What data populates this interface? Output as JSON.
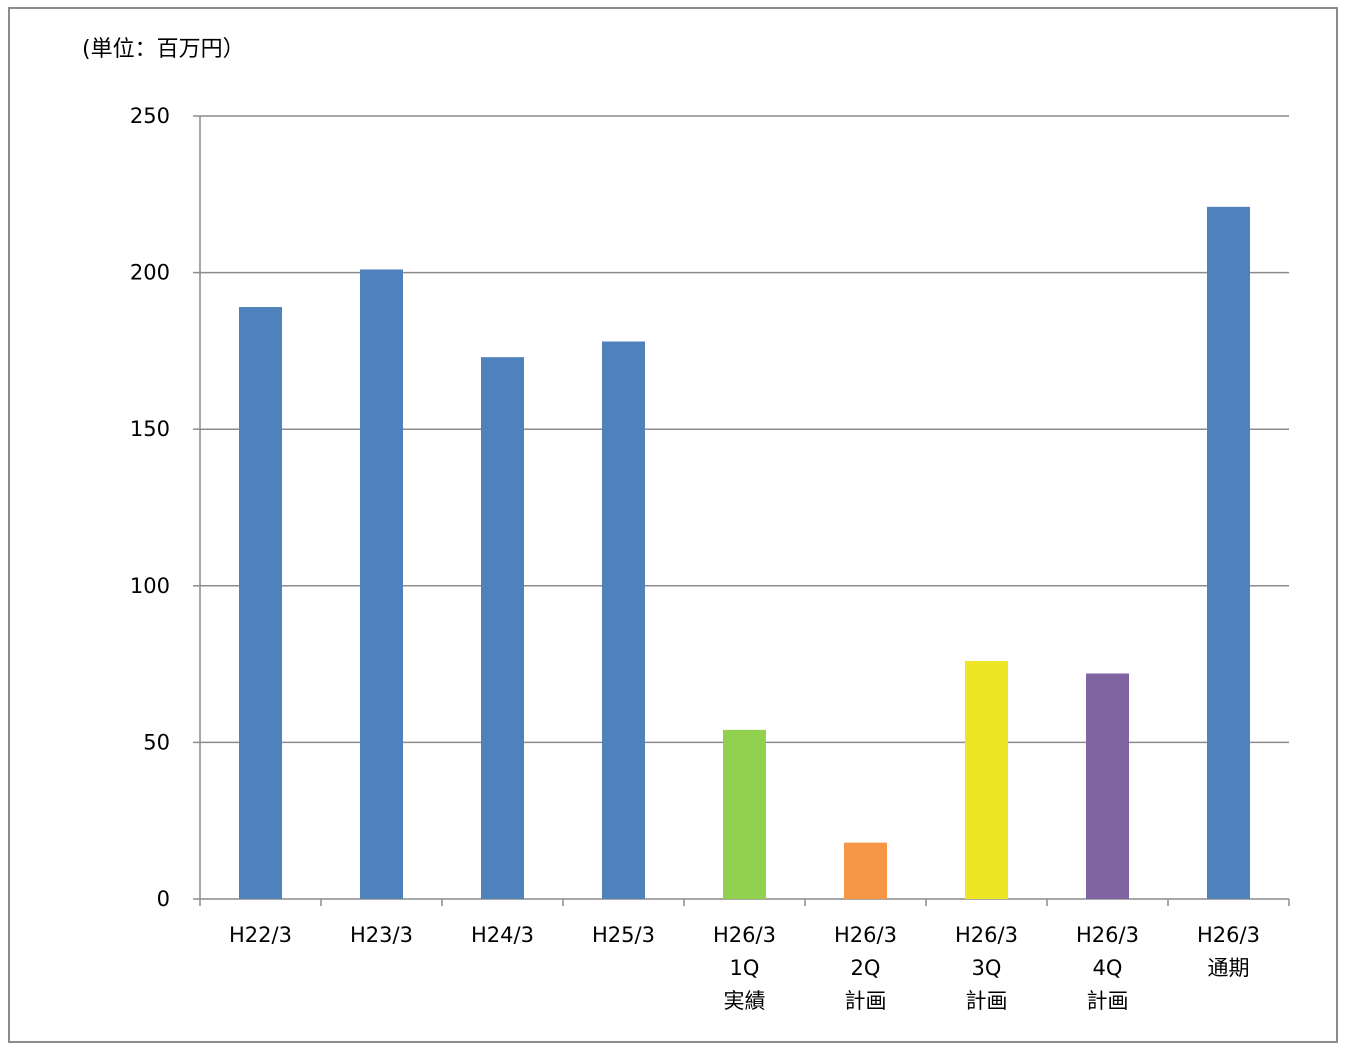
{
  "unit_label": "(単位：百万円）",
  "chart_data": {
    "type": "bar",
    "ylim": [
      0,
      250
    ],
    "yticks": [
      0,
      50,
      100,
      150,
      200,
      250
    ],
    "grid": true,
    "legend": "none",
    "ylabel": "(単位：百万円）",
    "xlabel": "",
    "categories": [
      [
        "H22/3"
      ],
      [
        "H23/3"
      ],
      [
        "H24/3"
      ],
      [
        "H25/3"
      ],
      [
        "H26/3",
        "1Q",
        "実績"
      ],
      [
        "H26/3",
        "2Q",
        "計画"
      ],
      [
        "H26/3",
        "3Q",
        "計画"
      ],
      [
        "H26/3",
        "4Q",
        "計画"
      ],
      [
        "H26/3",
        "通期"
      ]
    ],
    "values": [
      189,
      201,
      173,
      178,
      54,
      18,
      76,
      72,
      221
    ],
    "colors": [
      "#4f81bd",
      "#4f81bd",
      "#4f81bd",
      "#4f81bd",
      "#92d050",
      "#f79646",
      "#ede525",
      "#8064a2",
      "#4f81bd"
    ],
    "gridline_color": "#8c8c8c",
    "axis_color": "#8c8c8c"
  }
}
